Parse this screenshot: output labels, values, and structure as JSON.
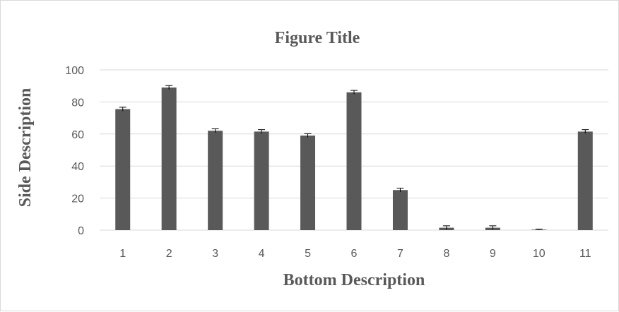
{
  "chart_data": {
    "type": "bar",
    "title": "Figure Title",
    "xlabel": "Bottom Description",
    "ylabel": "Side Description",
    "categories": [
      "1",
      "2",
      "3",
      "4",
      "5",
      "6",
      "7",
      "8",
      "9",
      "10",
      "11"
    ],
    "series": [
      {
        "values": [
          75.5,
          89,
          62,
          61.5,
          59,
          86,
          25,
          1.5,
          1.5,
          0.3,
          61.5
        ],
        "errors": [
          1.2,
          1.2,
          1.2,
          1.2,
          1.2,
          1.2,
          1.2,
          1.2,
          1.2,
          0.3,
          1.2
        ],
        "color": "#595959"
      }
    ],
    "ylim": [
      0,
      100
    ],
    "yticks": [
      "0",
      "20",
      "40",
      "60",
      "80",
      "100"
    ],
    "grid": true,
    "gridColor": "#d9d9d9"
  }
}
